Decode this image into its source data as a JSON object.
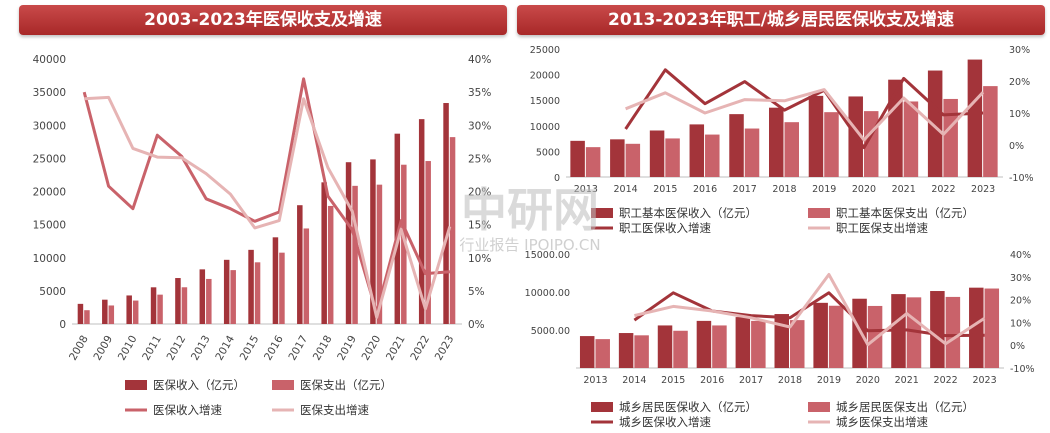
{
  "panels": {
    "left_title": "2003-2023年医保收支及增速",
    "right_title": "2013-2023年职工/城乡居民医保收支及增速"
  },
  "watermark": {
    "main": "中研网",
    "sub": "行业报告 IPOIPO.CN"
  },
  "colors": {
    "dark": "#a3343a",
    "medium": "#c9626a",
    "light": "#e1b3b6",
    "light_line": "#e6b4b4"
  },
  "chart_data": [
    {
      "type": "bar",
      "title": "2003-2023年医保收支及增速",
      "categories": [
        "2008",
        "2009",
        "2010",
        "2011",
        "2012",
        "2013",
        "2014",
        "2015",
        "2016",
        "2017",
        "2018",
        "2019",
        "2020",
        "2021",
        "2022",
        "2023"
      ],
      "series": [
        {
          "name": "医保收入（亿元）",
          "kind": "bar",
          "axis": "left",
          "values": [
            3040,
            3671,
            4309,
            5539,
            6939,
            8248,
            9687,
            11193,
            13084,
            17932,
            21384,
            24421,
            24846,
            28728,
            30922,
            33355
          ]
        },
        {
          "name": "医保支出（亿元）",
          "kind": "bar",
          "axis": "left",
          "values": [
            2084,
            2797,
            3538,
            4431,
            5544,
            6801,
            8134,
            9312,
            10767,
            14422,
            17822,
            20854,
            21032,
            24043,
            24597,
            28208
          ]
        },
        {
          "name": "医保收入增速",
          "kind": "line",
          "axis": "right",
          "values": [
            35.0,
            20.8,
            17.4,
            28.5,
            25.3,
            18.9,
            17.4,
            15.5,
            16.9,
            37.0,
            19.3,
            14.2,
            1.7,
            15.6,
            7.6,
            7.9
          ]
        },
        {
          "name": "医保支出增速",
          "kind": "line",
          "axis": "right",
          "values": [
            34.0,
            34.2,
            26.5,
            25.2,
            25.1,
            22.7,
            19.6,
            14.5,
            15.6,
            34.0,
            23.6,
            17.0,
            1.0,
            14.3,
            2.3,
            14.7
          ]
        }
      ],
      "y_left": {
        "min": 0,
        "max": 40000,
        "ticks": [
          "0",
          "5000",
          "10000",
          "15000",
          "20000",
          "25000",
          "30000",
          "35000",
          "40000"
        ]
      },
      "y_right": {
        "min": 0,
        "max": 40,
        "ticks": [
          "0%",
          "5%",
          "10%",
          "15%",
          "20%",
          "25%",
          "30%",
          "35%",
          "40%"
        ]
      },
      "legend_position": "bottom"
    },
    {
      "type": "bar",
      "categories": [
        "2013",
        "2014",
        "2015",
        "2016",
        "2017",
        "2018",
        "2019",
        "2020",
        "2021",
        "2022",
        "2023"
      ],
      "series": [
        {
          "name": "职工基本医保收入（亿元）",
          "kind": "bar",
          "axis": "left",
          "values": [
            7062,
            7356,
            9084,
            10274,
            12278,
            13538,
            15845,
            15732,
            19008,
            20793,
            22935
          ]
        },
        {
          "name": "职工基本医保支出（亿元）",
          "kind": "bar",
          "axis": "left",
          "values": [
            5830,
            6484,
            7532,
            8287,
            9467,
            10707,
            12663,
            12867,
            14752,
            15244,
            17751
          ]
        },
        {
          "name": "职工医保收入增速",
          "kind": "line",
          "axis": "right",
          "values": [
            null,
            5.0,
            23.5,
            12.9,
            19.8,
            10.9,
            17.1,
            -0.8,
            20.8,
            9.4,
            10.0
          ]
        },
        {
          "name": "职工医保支出增速",
          "kind": "line",
          "axis": "right",
          "values": [
            null,
            11.3,
            16.3,
            10.0,
            14.2,
            13.8,
            17.3,
            1.6,
            14.7,
            3.3,
            16.5
          ]
        }
      ],
      "y_left": {
        "min": 0,
        "max": 25000,
        "ticks": [
          "0",
          "5000",
          "10000",
          "15000",
          "20000",
          "25000"
        ]
      },
      "y_right": {
        "min": -10,
        "max": 30,
        "ticks": [
          "-10%",
          "0%",
          "10%",
          "20%",
          "30%"
        ]
      },
      "legend_position": "bottom"
    },
    {
      "type": "bar",
      "categories": [
        "2013",
        "2014",
        "2015",
        "2016",
        "2017",
        "2018",
        "2019",
        "2020",
        "2021",
        "2022",
        "2023"
      ],
      "series": [
        {
          "name": "城乡居民医保收入（亿元）",
          "kind": "bar",
          "axis": "left",
          "values": [
            4200,
            4600,
            5600,
            6200,
            6700,
            7100,
            8575,
            9115,
            9724,
            10129,
            10570
          ]
        },
        {
          "name": "城乡居民医保支出（亿元）",
          "kind": "bar",
          "axis": "left",
          "values": [
            3800,
            4300,
            4900,
            5600,
            6200,
            6300,
            8191,
            8165,
            9296,
            9353,
            10457
          ]
        },
        {
          "name": "城乡医保收入增速",
          "kind": "line",
          "axis": "right",
          "values": [
            null,
            11.0,
            23.0,
            15.0,
            13.0,
            12.0,
            23.0,
            6.3,
            6.7,
            4.2,
            4.4
          ]
        },
        {
          "name": "城乡医保支出增速",
          "kind": "line",
          "axis": "right",
          "values": [
            null,
            13.0,
            17.0,
            15.0,
            12.0,
            8.0,
            31.0,
            0.2,
            13.9,
            0.6,
            11.8
          ]
        }
      ],
      "y_left": {
        "min": 0,
        "max": 15000,
        "ticks": [
          "5000.00",
          "10000.00",
          "15000.00"
        ]
      },
      "y_right": {
        "min": -10,
        "max": 40,
        "ticks": [
          "-10%",
          "0%",
          "10%",
          "20%",
          "30%",
          "40%"
        ]
      },
      "legend_position": "bottom"
    }
  ]
}
